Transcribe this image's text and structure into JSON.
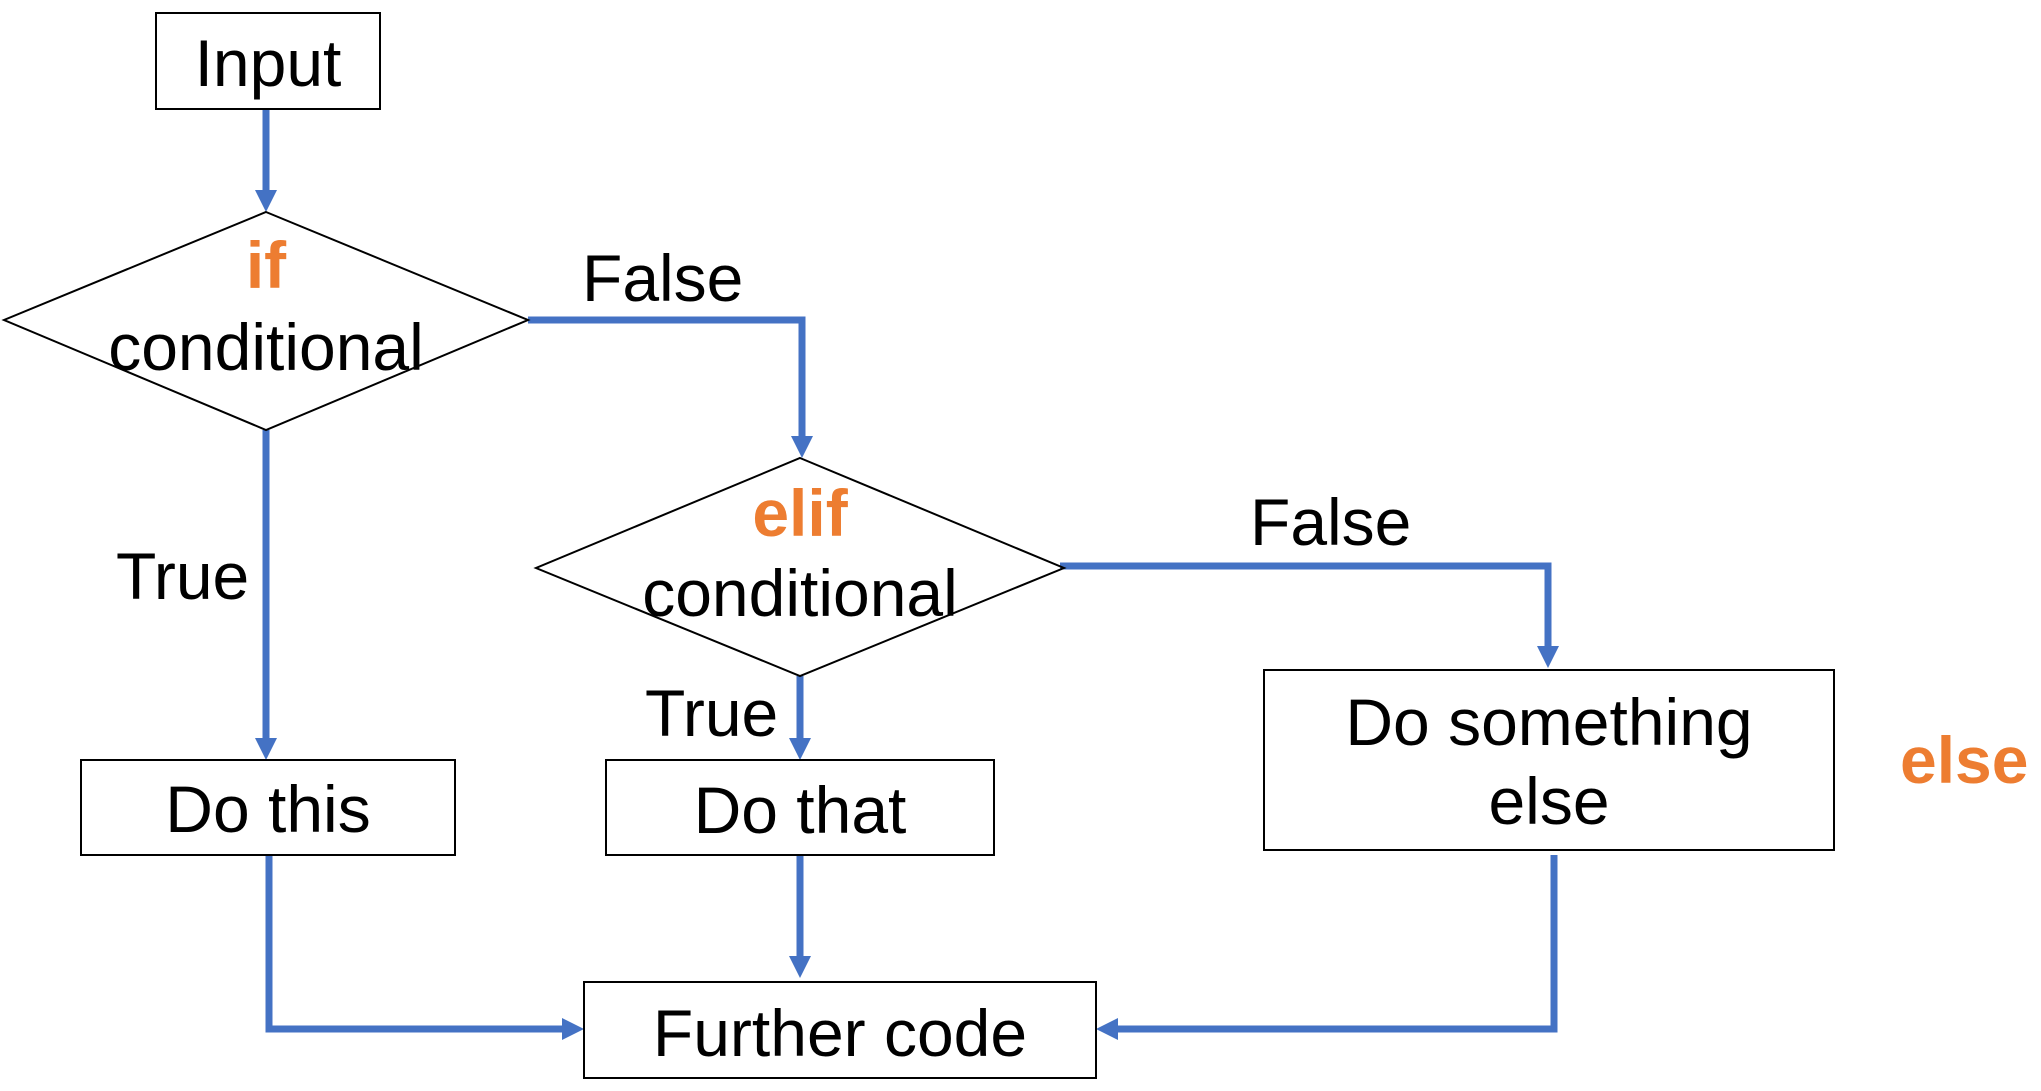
{
  "colors": {
    "arrow": "#4472C4",
    "keyword": "#ED7D31",
    "text": "#000000",
    "border": "#000000"
  },
  "nodes": {
    "input": {
      "label": "Input"
    },
    "if_conditional": {
      "keyword": "if",
      "label": "conditional"
    },
    "elif_conditional": {
      "keyword": "elif",
      "label": "conditional"
    },
    "do_this": {
      "label": "Do this"
    },
    "do_that": {
      "label": "Do that"
    },
    "do_something_else": {
      "line1": "Do something",
      "line2": "else"
    },
    "further_code": {
      "label": "Further code"
    }
  },
  "edges": {
    "if_false": "False",
    "if_true": "True",
    "elif_false": "False",
    "elif_true": "True"
  },
  "else_keyword": "else"
}
